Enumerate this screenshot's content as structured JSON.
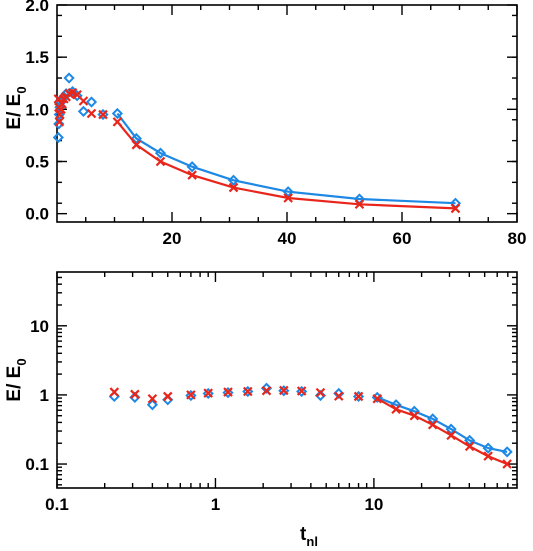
{
  "colors": {
    "series_a": "#1e88e5",
    "series_b": "#e8261b"
  },
  "chart_data": [
    {
      "type": "line",
      "xlabel": "",
      "ylabel": "E/ E",
      "ylabel_sub": "0",
      "xlim": [
        0,
        80
      ],
      "ylim": [
        -0.08,
        2.0
      ],
      "xscale": "linear",
      "yscale": "linear",
      "grid": false,
      "xticks": [
        20,
        40,
        60,
        80
      ],
      "xtick_labels": [
        "20",
        "40",
        "60",
        "80"
      ],
      "yticks": [
        0.0,
        0.5,
        1.0,
        1.5,
        2.0
      ],
      "ytick_labels": [
        "0.0",
        "0.5",
        "1.0",
        "1.5",
        "2.0"
      ],
      "series": [
        {
          "color": "#1e88e5",
          "marker": "diamond",
          "x": [
            0.23,
            0.31,
            0.4,
            0.5,
            0.7,
            0.9,
            1.2,
            1.6,
            2.1,
            2.7,
            3.5,
            4.6,
            6.0,
            8.0,
            10.5,
            13.8,
            18.0,
            23.5,
            30.7,
            40.2,
            52.6,
            69.3
          ],
          "y": [
            0.73,
            0.86,
            0.95,
            1.02,
            1.07,
            1.1,
            1.12,
            1.15,
            1.3,
            1.17,
            1.13,
            0.98,
            1.07,
            0.95,
            0.96,
            0.72,
            0.58,
            0.45,
            0.32,
            0.21,
            0.14,
            0.1
          ]
        },
        {
          "color": "#e8261b",
          "marker": "cross",
          "x": [
            0.23,
            0.31,
            0.4,
            0.5,
            0.7,
            0.9,
            1.2,
            1.6,
            2.1,
            2.7,
            3.5,
            4.6,
            6.0,
            8.0,
            10.5,
            13.8,
            18.0,
            23.5,
            30.7,
            40.2,
            52.6,
            69.3
          ],
          "y": [
            1.1,
            1.02,
            0.88,
            0.95,
            1.0,
            1.05,
            1.1,
            1.12,
            1.15,
            1.16,
            1.14,
            1.08,
            0.96,
            0.95,
            0.88,
            0.66,
            0.5,
            0.37,
            0.25,
            0.15,
            0.09,
            0.05
          ]
        }
      ]
    },
    {
      "type": "line",
      "xlabel": "t",
      "xlabel_sub": "nl",
      "ylabel": "E/ E",
      "ylabel_sub": "0",
      "xlim": [
        0.1,
        80
      ],
      "ylim": [
        0.045,
        60
      ],
      "xscale": "log",
      "yscale": "log",
      "grid": false,
      "xticks": [
        0.1,
        1,
        10
      ],
      "xtick_labels": [
        "0.1",
        "1",
        "10"
      ],
      "yticks": [
        0.1,
        1,
        10
      ],
      "ytick_labels": [
        "0.1",
        "1",
        "10"
      ],
      "series": [
        {
          "color": "#1e88e5",
          "marker": "diamond",
          "x": [
            0.23,
            0.31,
            0.4,
            0.5,
            0.7,
            0.9,
            1.2,
            1.6,
            2.1,
            2.7,
            3.5,
            4.6,
            6.0,
            8.0,
            10.5,
            13.8,
            18.0,
            23.5,
            30.7,
            40.2,
            52.6,
            69.3
          ],
          "y": [
            0.95,
            0.92,
            0.72,
            0.85,
            0.98,
            1.05,
            1.08,
            1.12,
            1.25,
            1.15,
            1.12,
            0.98,
            1.05,
            0.95,
            0.92,
            0.72,
            0.58,
            0.45,
            0.32,
            0.22,
            0.17,
            0.15
          ]
        },
        {
          "color": "#e8261b",
          "marker": "cross",
          "x": [
            0.23,
            0.31,
            0.4,
            0.5,
            0.7,
            0.9,
            1.2,
            1.6,
            2.1,
            2.7,
            3.5,
            4.6,
            6.0,
            8.0,
            10.5,
            13.8,
            18.0,
            23.5,
            30.7,
            40.2,
            52.6,
            69.3
          ],
          "y": [
            1.1,
            1.02,
            0.88,
            0.95,
            1.0,
            1.06,
            1.1,
            1.12,
            1.15,
            1.16,
            1.14,
            1.08,
            0.96,
            0.95,
            0.88,
            0.62,
            0.5,
            0.37,
            0.26,
            0.18,
            0.13,
            0.1
          ]
        }
      ]
    }
  ]
}
